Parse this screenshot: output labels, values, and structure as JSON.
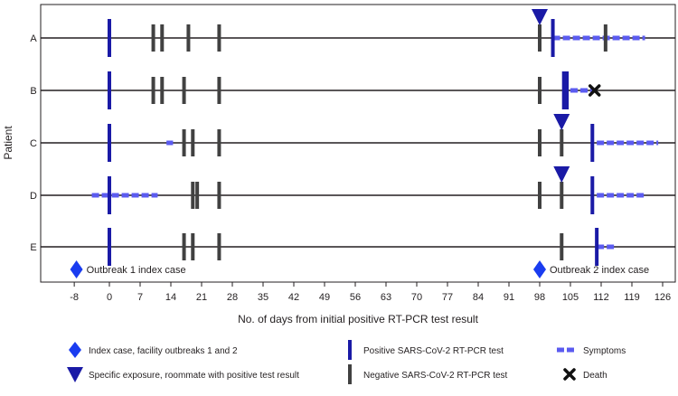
{
  "chart_data": {
    "type": "timeline",
    "title": "",
    "xlabel": "No. of days from initial positive RT-PCR test result",
    "ylabel": "Patient",
    "xlim": [
      -11,
      130
    ],
    "xticks": [
      -8,
      0,
      7,
      14,
      21,
      28,
      35,
      42,
      49,
      56,
      63,
      70,
      77,
      84,
      91,
      98,
      105,
      112,
      119,
      126
    ],
    "patients": [
      "A",
      "B",
      "C",
      "D",
      "E"
    ],
    "colors": {
      "positive": "#1a1aa6",
      "negative": "#414141",
      "symptoms": "#5b5bf0",
      "exposure": "#1a1aa6",
      "index": "#1a3cf0",
      "death": "#111111",
      "line": "#231f20"
    },
    "rows": [
      {
        "patient": "A",
        "positive": [
          0,
          101
        ],
        "negative": [
          10,
          12,
          18,
          25,
          98,
          113
        ],
        "symptoms": [
          [
            101,
            122
          ]
        ],
        "exposure": [
          98
        ],
        "index": [],
        "death": []
      },
      {
        "patient": "B",
        "positive": [
          0,
          103.5,
          104.2
        ],
        "negative": [
          10,
          12,
          17,
          25,
          98
        ],
        "symptoms": [
          [
            105,
            110
          ]
        ],
        "exposure": [],
        "index": [],
        "death": [
          110.5
        ]
      },
      {
        "patient": "C",
        "positive": [
          0,
          110
        ],
        "negative": [
          17,
          19,
          25,
          98,
          103
        ],
        "symptoms": [
          [
            13,
            14.5
          ],
          [
            111,
            125
          ]
        ],
        "exposure": [
          103
        ],
        "index": [],
        "death": []
      },
      {
        "patient": "D",
        "positive": [
          0,
          110
        ],
        "negative": [
          19,
          20,
          25,
          98,
          103
        ],
        "symptoms": [
          [
            -4,
            11
          ],
          [
            111,
            122
          ]
        ],
        "exposure": [
          103
        ],
        "index": [],
        "death": []
      },
      {
        "patient": "E",
        "positive": [
          0,
          111
        ],
        "negative": [
          17,
          19,
          25,
          103
        ],
        "symptoms": [
          [
            111,
            115
          ]
        ],
        "exposure": [],
        "index": [],
        "death": []
      }
    ],
    "index_cases": [
      {
        "label": "Outbreak 1 index case",
        "day": -7.5
      },
      {
        "label": "Outbreak 2 index case",
        "day": 98
      }
    ],
    "legend": [
      {
        "key": "index",
        "label": "Index case, facility outbreaks 1 and 2"
      },
      {
        "key": "exposure",
        "label": "Specific exposure, roommate with positive test result"
      },
      {
        "key": "positive",
        "label": "Positive SARS-CoV-2 RT-PCR test"
      },
      {
        "key": "negative",
        "label": "Negative SARS-CoV-2 RT-PCR test"
      },
      {
        "key": "symptoms",
        "label": "Symptoms"
      },
      {
        "key": "death",
        "label": "Death"
      }
    ]
  }
}
